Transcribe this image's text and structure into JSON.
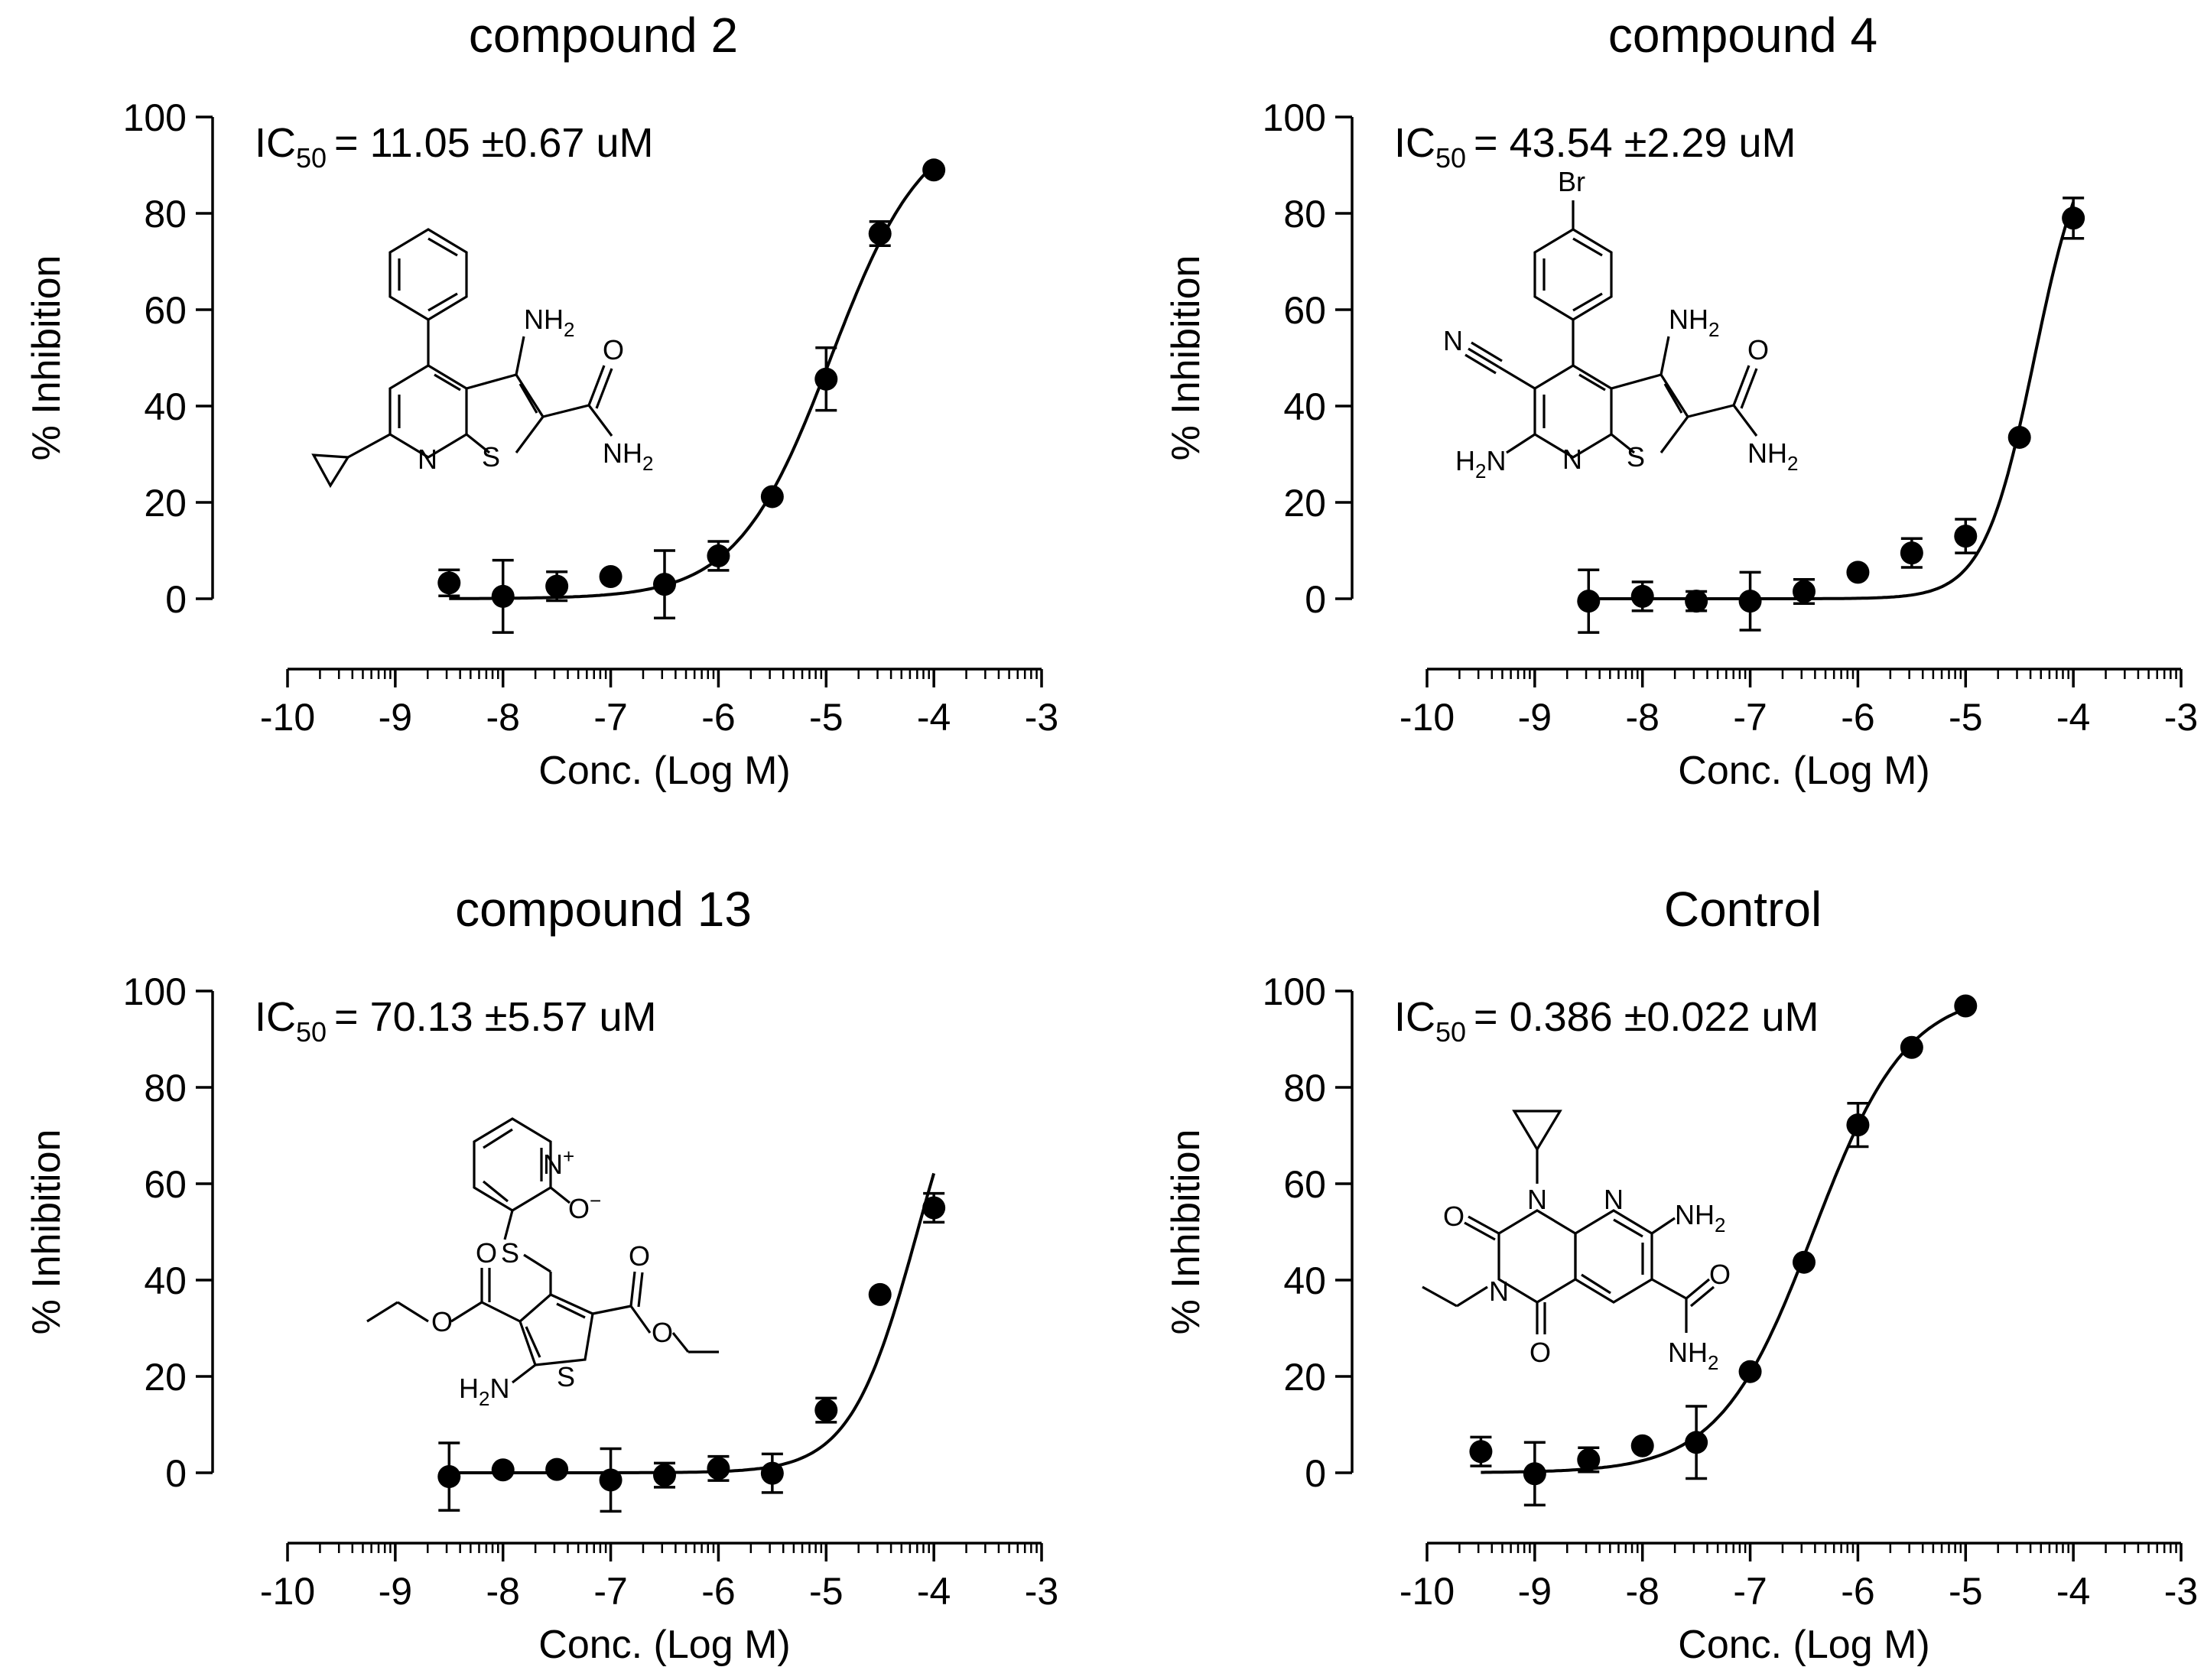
{
  "panels": [
    {
      "title": "compound 2",
      "ic50_label": "IC",
      "ic50_sub": "50",
      "ic50_value": "=  11.05 ±0.67 uM",
      "structure": "compound-2-structure",
      "chart_data": {
        "type": "scatter",
        "x": [
          -8.5,
          -8.0,
          -7.5,
          -7.0,
          -6.5,
          -6.0,
          -5.5,
          -5.0,
          -4.5,
          -4.0
        ],
        "y": [
          3.3,
          0.5,
          2.6,
          4.6,
          3.0,
          8.9,
          21.2,
          45.6,
          75.8,
          89.0
        ],
        "yerr": [
          2.7,
          7.5,
          3.0,
          0,
          7.0,
          3.0,
          0,
          6.5,
          2.5,
          0
        ],
        "fit": {
          "model": "sigmoid",
          "bottom": 0,
          "top": 100,
          "logIC50": -4.957,
          "hill": 1.0
        },
        "xlabel": "Conc. (Log M)",
        "ylabel": "% Inhibition",
        "xlim": [
          -10,
          -3
        ],
        "ylim": [
          0,
          100
        ],
        "xticks": [
          -10,
          -9,
          -8,
          -7,
          -6,
          -5,
          -4,
          -3
        ],
        "yticks": [
          0,
          20,
          40,
          60,
          80,
          100
        ],
        "grid": false
      }
    },
    {
      "title": "compound 4",
      "ic50_label": "IC",
      "ic50_sub": "50",
      "ic50_value": "=  43.54 ±2.29 uM",
      "structure": "compound-4-structure",
      "chart_data": {
        "type": "scatter",
        "x": [
          -8.5,
          -8.0,
          -7.5,
          -7.0,
          -6.5,
          -6.0,
          -5.5,
          -5.0,
          -4.5,
          -4.0
        ],
        "y": [
          -0.5,
          0.5,
          -0.5,
          -0.5,
          1.5,
          5.5,
          9.5,
          13.0,
          33.5,
          79.0
        ],
        "yerr": [
          6.5,
          3.0,
          2.0,
          6.0,
          2.5,
          0,
          3.0,
          3.5,
          0,
          4.2
        ],
        "fit": {
          "model": "sigmoid",
          "bottom": 0,
          "top": 100,
          "logIC50": -4.361,
          "hill": 1.85
        },
        "xlabel": "Conc. (Log M)",
        "ylabel": "% Inhibition",
        "xlim": [
          -10,
          -3
        ],
        "ylim": [
          0,
          100
        ],
        "xticks": [
          -10,
          -9,
          -8,
          -7,
          -6,
          -5,
          -4,
          -3
        ],
        "yticks": [
          0,
          20,
          40,
          60,
          80,
          100
        ],
        "grid": false
      }
    },
    {
      "title": "compound 13",
      "ic50_label": "IC",
      "ic50_sub": "50",
      "ic50_value": "=  70.13 ±5.57 uM",
      "structure": "compound-13-structure",
      "chart_data": {
        "type": "scatter",
        "x": [
          -8.5,
          -8.0,
          -7.5,
          -7.0,
          -6.5,
          -6.0,
          -5.5,
          -5.0,
          -4.5,
          -4.0
        ],
        "y": [
          -0.8,
          0.6,
          0.7,
          -1.5,
          -0.5,
          0.9,
          -0.1,
          13.0,
          37.0,
          55.0
        ],
        "yerr": [
          7.0,
          0,
          0,
          6.5,
          2.5,
          2.5,
          4.0,
          2.5,
          0,
          3.0
        ],
        "fit": {
          "model": "sigmoid",
          "bottom": 0,
          "top": 100,
          "logIC50": -4.154,
          "hill": 1.4
        },
        "xlabel": "Conc. (Log M)",
        "ylabel": "% Inhibition",
        "xlim": [
          -10,
          -3
        ],
        "ylim": [
          0,
          100
        ],
        "xticks": [
          -10,
          -9,
          -8,
          -7,
          -6,
          -5,
          -4,
          -3
        ],
        "yticks": [
          0,
          20,
          40,
          60,
          80,
          100
        ],
        "grid": false
      }
    },
    {
      "title": "Control",
      "ic50_label": "IC",
      "ic50_sub": "50",
      "ic50_value": "=  0.386 ±0.022 uM",
      "structure": "control-structure",
      "chart_data": {
        "type": "scatter",
        "x": [
          -9.5,
          -9.0,
          -8.5,
          -8.0,
          -7.5,
          -7.0,
          -6.5,
          -6.0,
          -5.5,
          -5.0
        ],
        "y": [
          4.4,
          -0.2,
          2.7,
          5.6,
          6.3,
          21.0,
          43.7,
          72.2,
          88.3,
          96.9
        ],
        "yerr": [
          3.0,
          6.5,
          2.5,
          0,
          7.5,
          0,
          0,
          4.5,
          0,
          0
        ],
        "fit": {
          "model": "sigmoid",
          "bottom": 0,
          "top": 100,
          "logIC50": -6.413,
          "hill": 1.0
        },
        "xlabel": "Conc. (Log M)",
        "ylabel": "% Inhibition",
        "xlim": [
          -10,
          -3
        ],
        "ylim": [
          0,
          100
        ],
        "xticks": [
          -10,
          -9,
          -8,
          -7,
          -6,
          -5,
          -4,
          -3
        ],
        "yticks": [
          0,
          20,
          40,
          60,
          80,
          100
        ],
        "grid": false
      }
    }
  ],
  "chem_labels": {
    "nh2": "NH",
    "h2n": "H",
    "two": "2",
    "n": "N",
    "s": "S",
    "o": "O",
    "br": "Br",
    "o_minus": "O",
    "plus": "+",
    "minus": "−"
  },
  "colors": {
    "ink": "#000000",
    "background": "#ffffff"
  }
}
